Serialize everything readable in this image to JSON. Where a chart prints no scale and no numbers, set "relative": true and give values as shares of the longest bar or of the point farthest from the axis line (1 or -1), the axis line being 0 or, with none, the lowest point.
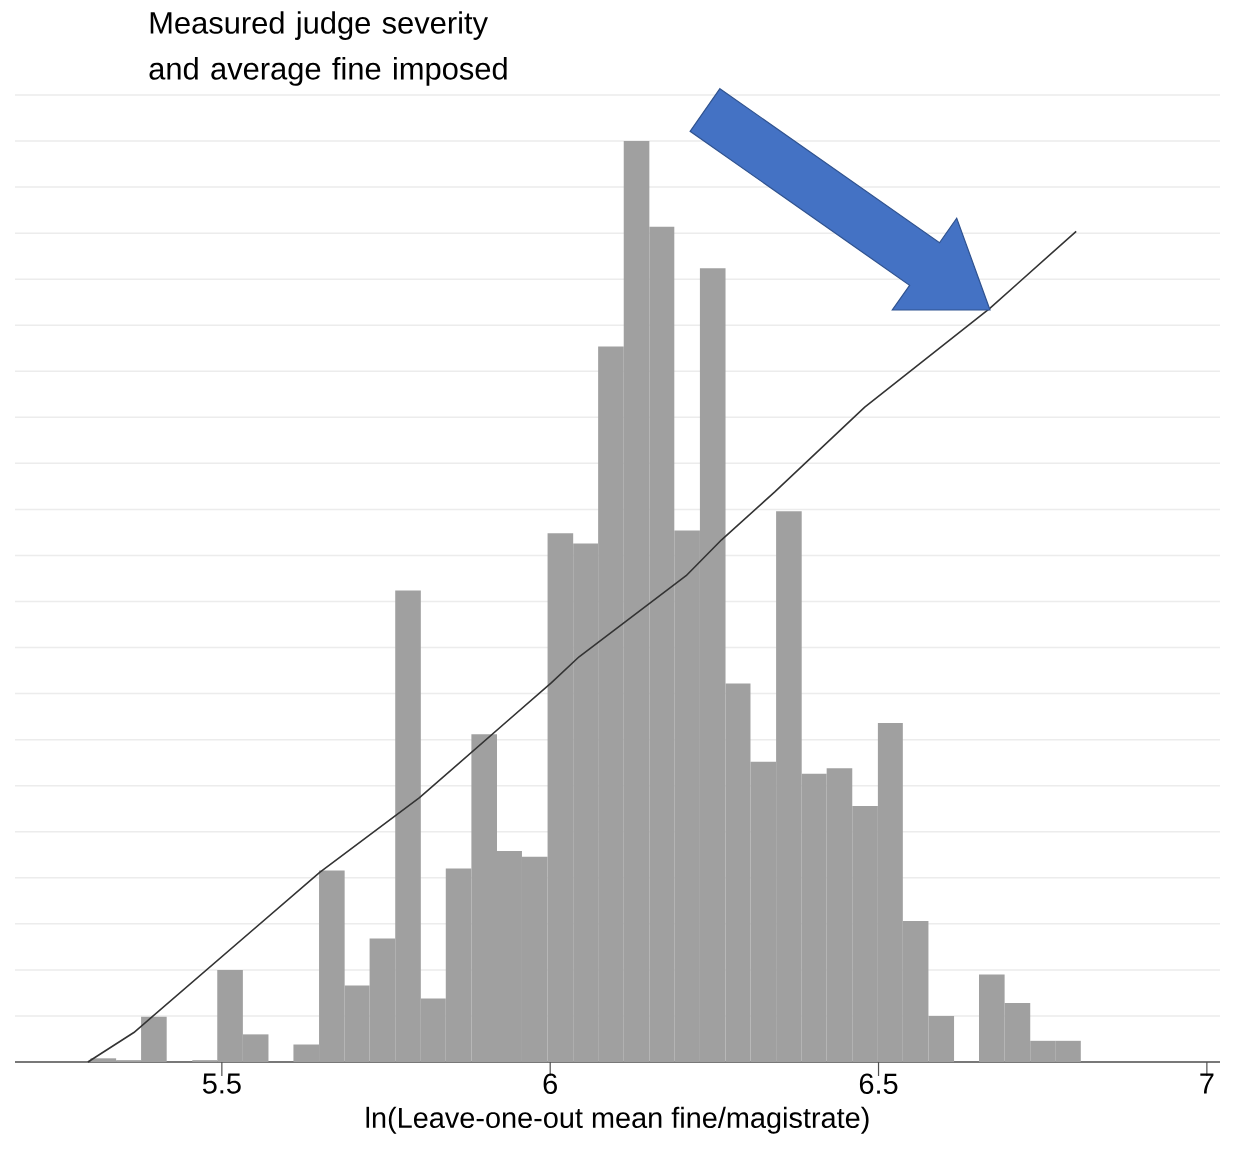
{
  "chart_data": {
    "type": "histogram",
    "relative": true,
    "xlabel": "ln(Leave-one-out mean fine/magistrate)",
    "xlim": [
      5.185,
      7.02
    ],
    "xticks": [
      5.5,
      6,
      6.5,
      7
    ],
    "grid": "y",
    "tick_labels": "x",
    "annotations": [
      "Measured judge severity and average fine imposed"
    ],
    "series": [
      {
        "color": "#a0a0a0",
        "bins": [
          5.3,
          5.339,
          5.377,
          5.416,
          5.455,
          5.493,
          5.532,
          5.571,
          5.609,
          5.648,
          5.687,
          5.725,
          5.764,
          5.803,
          5.841,
          5.88,
          5.919,
          5.957,
          5.996,
          6.035,
          6.073,
          6.112,
          6.151,
          6.189,
          6.228,
          6.267,
          6.305,
          6.344,
          6.383,
          6.421,
          6.46,
          6.499,
          6.537,
          6.576,
          6.615,
          6.653,
          6.692,
          6.731,
          6.769,
          6.808
        ],
        "values": [
          0.004,
          0.002,
          0.049,
          0,
          0.002,
          0.1,
          0.03,
          0,
          0.019,
          0.208,
          0.083,
          0.134,
          0.512,
          0.069,
          0.21,
          0.356,
          0.229,
          0.223,
          0.574,
          0.563,
          0.777,
          1.0,
          0.907,
          0.577,
          0.862,
          0.411,
          0.326,
          0.598,
          0.313,
          0.319,
          0.278,
          0.368,
          0.153,
          0.05,
          0,
          0.095,
          0.064,
          0.023,
          0.023
        ]
      },
      {
        "type": "line",
        "color": "#333333",
        "line_style": "solid",
        "x": [
          5.296,
          5.366,
          5.649,
          5.801,
          6.002,
          6.044,
          6.207,
          6.261,
          6.342,
          6.479,
          6.669,
          6.801
        ],
        "values": [
          0,
          0.032,
          0.206,
          0.287,
          0.412,
          0.44,
          0.528,
          0.567,
          0.619,
          0.711,
          0.818,
          0.902
        ]
      }
    ]
  }
}
